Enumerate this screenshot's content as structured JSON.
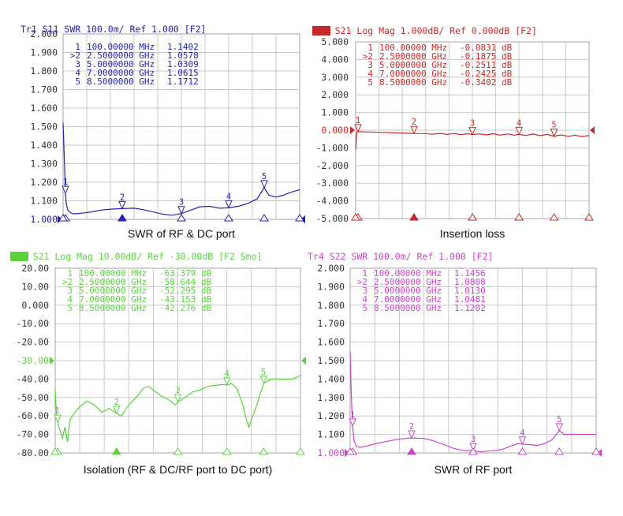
{
  "colors": {
    "grid": "#c8c8c8",
    "frame": "#a0a0a0",
    "axis_text": "#333333",
    "caption_text": "#111111",
    "background": "#ffffff"
  },
  "chart_data": [
    {
      "type": "line",
      "title": "Tr1 S11 SWR 100.0m/ Ref 1.000 [F2]",
      "title_parts": [
        "Tr1",
        " S11 SWR 100.0m/ Ref 1.000 [F2]"
      ],
      "trace_label_boxed": false,
      "caption": "SWR of RF & DC port",
      "color": "#2323a8",
      "ylim": [
        1.0,
        2.0
      ],
      "yticks": [
        "2.000",
        "1.900",
        "1.800",
        "1.700",
        "1.600",
        "1.500",
        "1.400",
        "1.300",
        "1.200",
        "1.100",
        "1.000"
      ],
      "ref_value": 1.0,
      "xlim": [
        0,
        10
      ],
      "xlabel": "",
      "ylabel": "",
      "marker_table": [
        {
          "id": "1",
          "active": false,
          "freq": "100.00000 MHz",
          "value": "1.1402"
        },
        {
          "id": "2",
          "active": true,
          "freq": "2.5000000 GHz",
          "value": "1.0578"
        },
        {
          "id": "3",
          "active": false,
          "freq": "5.0000000 GHz",
          "value": "1.0309"
        },
        {
          "id": "4",
          "active": false,
          "freq": "7.0000000 GHz",
          "value": "1.0615"
        },
        {
          "id": "5",
          "active": false,
          "freq": "8.5000000 GHz",
          "value": "1.1712"
        }
      ],
      "markers": [
        {
          "label": "1",
          "x": 0.1,
          "y": 1.14
        },
        {
          "label": "2",
          "x": 2.5,
          "y": 1.058
        },
        {
          "label": "3",
          "x": 5.0,
          "y": 1.031
        },
        {
          "label": "4",
          "x": 7.0,
          "y": 1.062
        },
        {
          "label": "5",
          "x": 8.5,
          "y": 1.171
        }
      ],
      "series": [
        {
          "name": "S11 SWR",
          "x": [
            0.0,
            0.06,
            0.1,
            0.14,
            0.2,
            0.28,
            0.4,
            0.6,
            0.9,
            1.2,
            1.6,
            2.0,
            2.5,
            3.0,
            3.4,
            3.8,
            4.2,
            4.6,
            5.0,
            5.4,
            5.8,
            6.2,
            6.6,
            7.0,
            7.4,
            7.8,
            8.2,
            8.5,
            8.7,
            9.0,
            9.3,
            9.6,
            10.0
          ],
          "values": [
            1.52,
            1.3,
            1.14,
            1.08,
            1.05,
            1.04,
            1.03,
            1.03,
            1.035,
            1.04,
            1.05,
            1.055,
            1.058,
            1.06,
            1.052,
            1.04,
            1.028,
            1.022,
            1.031,
            1.05,
            1.068,
            1.07,
            1.06,
            1.062,
            1.07,
            1.085,
            1.11,
            1.171,
            1.13,
            1.12,
            1.13,
            1.145,
            1.16
          ]
        }
      ]
    },
    {
      "type": "line",
      "title": "Tr2 S21 Log Mag 1.000dB/ Ref 0.000dB [F2]",
      "title_parts": [
        "Tr2",
        " S21 Log Mag 1.000dB/ Ref 0.000dB [F2]"
      ],
      "trace_label_boxed": true,
      "caption": "Insertion loss",
      "color": "#c82828",
      "ylim": [
        -5.0,
        5.0
      ],
      "yticks": [
        "5.000",
        "4.000",
        "3.000",
        "2.000",
        "1.000",
        "0.000",
        "-1.000",
        "-2.000",
        "-3.000",
        "-4.000",
        "-5.000"
      ],
      "ref_value": 0.0,
      "xlim": [
        0,
        10
      ],
      "xlabel": "",
      "ylabel": "",
      "marker_table": [
        {
          "id": "1",
          "active": false,
          "freq": "100.00000 MHz",
          "value": "-0.0831 dB"
        },
        {
          "id": "2",
          "active": true,
          "freq": "2.5000000 GHz",
          "value": "-0.1875 dB"
        },
        {
          "id": "3",
          "active": false,
          "freq": "5.0000000 GHz",
          "value": "-0.2511 dB"
        },
        {
          "id": "4",
          "active": false,
          "freq": "7.0000000 GHz",
          "value": "-0.2425 dB"
        },
        {
          "id": "5",
          "active": false,
          "freq": "8.5000000 GHz",
          "value": "-0.3402 dB"
        }
      ],
      "markers": [
        {
          "label": "1",
          "x": 0.1,
          "y": -0.083
        },
        {
          "label": "2",
          "x": 2.5,
          "y": -0.1875
        },
        {
          "label": "3",
          "x": 5.0,
          "y": -0.251
        },
        {
          "label": "4",
          "x": 7.0,
          "y": -0.2425
        },
        {
          "label": "5",
          "x": 8.5,
          "y": -0.34
        }
      ],
      "series": [
        {
          "name": "S21 Log Mag",
          "x": [
            0.0,
            0.05,
            0.1,
            0.5,
            1.0,
            1.5,
            2.0,
            2.5,
            3.0,
            3.3,
            3.6,
            3.9,
            4.2,
            4.5,
            4.8,
            5.0,
            5.3,
            5.6,
            5.9,
            6.2,
            6.5,
            6.8,
            7.0,
            7.3,
            7.6,
            7.9,
            8.2,
            8.5,
            8.8,
            9.1,
            9.4,
            9.7,
            10.0
          ],
          "values": [
            -1.1,
            -0.1,
            -0.083,
            -0.1,
            -0.12,
            -0.14,
            -0.16,
            -0.1875,
            -0.19,
            -0.23,
            -0.18,
            -0.24,
            -0.19,
            -0.25,
            -0.2,
            -0.251,
            -0.21,
            -0.27,
            -0.2,
            -0.28,
            -0.21,
            -0.28,
            -0.2425,
            -0.3,
            -0.22,
            -0.31,
            -0.24,
            -0.34,
            -0.27,
            -0.35,
            -0.28,
            -0.36,
            -0.3
          ]
        }
      ]
    },
    {
      "type": "line",
      "title": "Tr3 S21 Log Mag 10.00dB/ Ref -30.00dB [F2 Smo]",
      "title_parts": [
        "Tr3",
        " S21 Log Mag 10.00dB/ Ref -30.00dB [F2 Smo]"
      ],
      "trace_label_boxed": true,
      "caption": "Isolation (RF & DC/RF port to DC port)",
      "color": "#5ad23c",
      "ylim": [
        -80.0,
        20.0
      ],
      "yticks": [
        "20.00",
        "10.00",
        "0.000",
        "-10.00",
        "-20.00",
        "-30.00",
        "-40.00",
        "-50.00",
        "-60.00",
        "-70.00",
        "-80.00"
      ],
      "ref_value": -30.0,
      "xlim": [
        0,
        10
      ],
      "xlabel": "",
      "ylabel": "",
      "marker_table": [
        {
          "id": "1",
          "active": false,
          "freq": "100.00000 MHz",
          "value": "-63.379 dB"
        },
        {
          "id": "2",
          "active": true,
          "freq": "2.5000000 GHz",
          "value": "-58.644 dB"
        },
        {
          "id": "3",
          "active": false,
          "freq": "5.0000000 GHz",
          "value": "-52.295 dB"
        },
        {
          "id": "4",
          "active": false,
          "freq": "7.0000000 GHz",
          "value": "-43.153 dB"
        },
        {
          "id": "5",
          "active": false,
          "freq": "8.5000000 GHz",
          "value": "-42.276 dB"
        }
      ],
      "markers": [
        {
          "label": "1",
          "x": 0.1,
          "y": -63.4
        },
        {
          "label": "2",
          "x": 2.5,
          "y": -58.6
        },
        {
          "label": "3",
          "x": 5.0,
          "y": -52.3
        },
        {
          "label": "4",
          "x": 7.0,
          "y": -43.2
        },
        {
          "label": "5",
          "x": 8.5,
          "y": -42.3
        }
      ],
      "series": [
        {
          "name": "S21 Log Mag",
          "x": [
            0.0,
            0.05,
            0.1,
            0.2,
            0.3,
            0.4,
            0.5,
            0.6,
            0.8,
            1.0,
            1.3,
            1.6,
            1.9,
            2.2,
            2.5,
            2.7,
            3.0,
            3.3,
            3.6,
            3.8,
            4.0,
            4.3,
            4.6,
            4.9,
            5.0,
            5.3,
            5.6,
            5.9,
            6.2,
            6.5,
            6.8,
            7.0,
            7.2,
            7.4,
            7.6,
            7.8,
            7.9,
            8.0,
            8.2,
            8.5,
            8.8,
            9.1,
            9.4,
            9.7,
            10.0
          ],
          "values": [
            -45,
            -60,
            -63.4,
            -68,
            -72,
            -66,
            -74,
            -62,
            -58,
            -55,
            -52,
            -54,
            -58,
            -56,
            -58.6,
            -60,
            -54,
            -50,
            -45,
            -44,
            -46,
            -49,
            -51,
            -54,
            -52.3,
            -50,
            -47,
            -46,
            -44,
            -43.5,
            -43,
            -43.2,
            -42.5,
            -45,
            -52,
            -62,
            -66,
            -62,
            -55,
            -42.3,
            -40,
            -40,
            -40,
            -40,
            -38
          ]
        }
      ]
    },
    {
      "type": "line",
      "title": "Tr4 S22 SWR 100.0m/ Ref 1.000 [F2]",
      "title_parts": [
        "Tr4",
        " S22 SWR 100.0m/ Ref 1.000 [F2]"
      ],
      "trace_label_boxed": false,
      "caption": "SWR of RF port",
      "color": "#c846c8",
      "ylim": [
        1.0,
        2.0
      ],
      "yticks": [
        "2.000",
        "1.900",
        "1.800",
        "1.700",
        "1.600",
        "1.500",
        "1.400",
        "1.300",
        "1.200",
        "1.100",
        "1.000"
      ],
      "ref_value": 1.0,
      "xlim": [
        0,
        10
      ],
      "xlabel": "",
      "ylabel": "",
      "marker_table": [
        {
          "id": "1",
          "active": false,
          "freq": "100.00000 MHz",
          "value": "1.1456"
        },
        {
          "id": "2",
          "active": true,
          "freq": "2.5000000 GHz",
          "value": "1.0808"
        },
        {
          "id": "3",
          "active": false,
          "freq": "5.0000000 GHz",
          "value": "1.0130"
        },
        {
          "id": "4",
          "active": false,
          "freq": "7.0000000 GHz",
          "value": "1.0481"
        },
        {
          "id": "5",
          "active": false,
          "freq": "8.5000000 GHz",
          "value": "1.1202"
        }
      ],
      "markers": [
        {
          "label": "1",
          "x": 0.1,
          "y": 1.146
        },
        {
          "label": "2",
          "x": 2.5,
          "y": 1.081
        },
        {
          "label": "3",
          "x": 5.0,
          "y": 1.013
        },
        {
          "label": "4",
          "x": 7.0,
          "y": 1.048
        },
        {
          "label": "5",
          "x": 8.5,
          "y": 1.12
        }
      ],
      "series": [
        {
          "name": "S22 SWR",
          "x": [
            0.0,
            0.05,
            0.1,
            0.15,
            0.25,
            0.4,
            0.6,
            0.9,
            1.2,
            1.6,
            2.0,
            2.5,
            3.0,
            3.4,
            3.8,
            4.2,
            4.6,
            5.0,
            5.3,
            5.6,
            5.9,
            6.2,
            6.5,
            6.8,
            7.0,
            7.3,
            7.6,
            7.9,
            8.2,
            8.5,
            8.7,
            9.0,
            9.3,
            9.6,
            10.0
          ],
          "values": [
            1.55,
            1.3,
            1.146,
            1.07,
            1.035,
            1.03,
            1.035,
            1.045,
            1.055,
            1.065,
            1.075,
            1.081,
            1.078,
            1.065,
            1.045,
            1.025,
            1.012,
            1.013,
            1.005,
            1.01,
            1.012,
            1.02,
            1.035,
            1.05,
            1.048,
            1.045,
            1.04,
            1.05,
            1.07,
            1.12,
            1.1,
            1.1,
            1.1,
            1.1,
            1.1
          ]
        }
      ]
    }
  ]
}
